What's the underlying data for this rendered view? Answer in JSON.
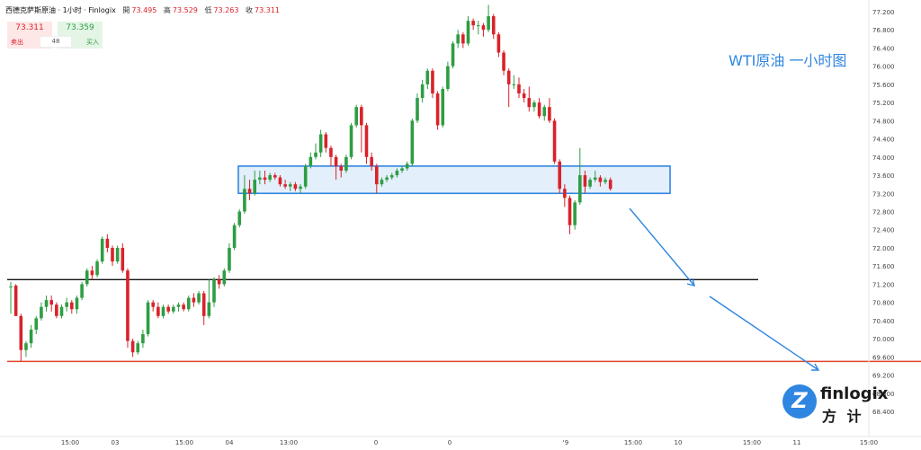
{
  "header": {
    "symbol": "西德克萨斯原油 · 1小时 · Finlogix",
    "open_label": "開",
    "open_value": "73.495",
    "high_label": "高",
    "high_value": "73.529",
    "low_label": "低",
    "low_value": "73.263",
    "close_label": "收",
    "close_value": "73.311"
  },
  "trade_panel": {
    "sell_price": "73.311",
    "buy_price": "73.359",
    "spread": "48",
    "sell_label": "卖出",
    "buy_label": "买入"
  },
  "annotation": "WTI原油 一小时图",
  "logo": {
    "name": "finlogix",
    "chinese": "方 计"
  },
  "colors": {
    "up": "#2e9d44",
    "down": "#d9222a",
    "zone_fill": "#e3effb",
    "zone_border": "#2f86e0",
    "arrow": "#2f86e0",
    "support_red": "#e0452a",
    "support_black": "#111111"
  },
  "chart_data": {
    "type": "candlestick",
    "y_ticks": [
      "77.200",
      "76.800",
      "76.400",
      "76.000",
      "75.600",
      "75.200",
      "74.800",
      "74.400",
      "74.000",
      "73.600",
      "73.200",
      "72.800",
      "72.400",
      "72.000",
      "71.600",
      "71.200",
      "70.800",
      "70.400",
      "70.000",
      "69.600",
      "69.200",
      "68.800",
      "68.400"
    ],
    "x_ticks": [
      "15:00",
      "03",
      "15:00",
      "04",
      "13:00",
      "0",
      "0",
      "'9",
      "15:00",
      "10",
      "15:00",
      "11",
      "15:00"
    ],
    "ylim": [
      68.4,
      77.2
    ],
    "resistance_zone": [
      73.2,
      73.8
    ],
    "horizontal_levels": [
      {
        "value": 71.3,
        "color": "black"
      },
      {
        "value": 69.5,
        "color": "red"
      }
    ],
    "candles": [
      [
        71.15,
        71.15,
        71.25,
        70.55
      ],
      [
        71.17,
        70.5,
        71.2,
        70.5
      ],
      [
        70.5,
        69.75,
        70.55,
        69.5
      ],
      [
        69.75,
        69.9,
        69.95,
        69.6
      ],
      [
        69.9,
        70.2,
        70.3,
        69.8
      ],
      [
        70.2,
        70.45,
        70.5,
        70.1
      ],
      [
        70.45,
        70.7,
        70.8,
        70.4
      ],
      [
        70.7,
        70.85,
        70.95,
        70.6
      ],
      [
        70.85,
        70.75,
        70.95,
        70.6
      ],
      [
        70.75,
        70.5,
        70.8,
        70.45
      ],
      [
        70.5,
        70.7,
        70.75,
        70.45
      ],
      [
        70.7,
        70.8,
        70.9,
        70.6
      ],
      [
        70.8,
        70.65,
        70.85,
        70.55
      ],
      [
        70.65,
        70.9,
        70.95,
        70.55
      ],
      [
        70.9,
        71.2,
        71.25,
        70.85
      ],
      [
        71.2,
        71.5,
        71.55,
        71.15
      ],
      [
        71.5,
        71.4,
        71.6,
        71.3
      ],
      [
        71.4,
        71.7,
        71.75,
        71.35
      ],
      [
        71.7,
        72.2,
        72.25,
        71.65
      ],
      [
        72.2,
        72.0,
        72.3,
        71.9
      ],
      [
        72.0,
        71.7,
        72.05,
        71.6
      ],
      [
        71.7,
        72.0,
        72.05,
        71.65
      ],
      [
        72.0,
        71.5,
        72.1,
        71.45
      ],
      [
        71.5,
        69.95,
        71.55,
        69.8
      ],
      [
        69.95,
        69.7,
        70.0,
        69.6
      ],
      [
        69.7,
        69.9,
        69.95,
        69.65
      ],
      [
        69.9,
        70.1,
        70.2,
        69.8
      ],
      [
        70.1,
        70.8,
        70.85,
        70.05
      ],
      [
        70.8,
        70.7,
        70.85,
        70.6
      ],
      [
        70.7,
        70.5,
        70.8,
        70.45
      ],
      [
        70.5,
        70.7,
        70.75,
        70.45
      ],
      [
        70.7,
        70.6,
        70.75,
        70.55
      ],
      [
        70.6,
        70.7,
        70.75,
        70.55
      ],
      [
        70.7,
        70.75,
        70.8,
        70.6
      ],
      [
        70.75,
        70.65,
        70.8,
        70.6
      ],
      [
        70.65,
        70.9,
        70.95,
        70.6
      ],
      [
        70.9,
        70.8,
        71.0,
        70.7
      ],
      [
        70.8,
        71.0,
        71.05,
        70.75
      ],
      [
        71.0,
        70.5,
        71.05,
        70.3
      ],
      [
        70.5,
        70.8,
        71.3,
        70.45
      ],
      [
        70.8,
        71.3,
        71.35,
        70.7
      ],
      [
        71.3,
        71.2,
        71.4,
        71.1
      ],
      [
        71.2,
        71.5,
        71.55,
        71.15
      ],
      [
        71.5,
        72.0,
        72.1,
        71.45
      ],
      [
        72.0,
        72.5,
        72.55,
        71.95
      ],
      [
        72.5,
        72.8,
        72.85,
        72.45
      ],
      [
        72.8,
        73.3,
        73.6,
        72.75
      ],
      [
        73.3,
        73.2,
        73.5,
        73.05
      ],
      [
        73.2,
        73.5,
        73.7,
        73.15
      ],
      [
        73.5,
        73.55,
        73.7,
        73.4
      ],
      [
        73.55,
        73.5,
        73.7,
        73.4
      ],
      [
        73.5,
        73.6,
        73.65,
        73.45
      ],
      [
        73.6,
        73.55,
        73.65,
        73.5
      ],
      [
        73.55,
        73.4,
        73.6,
        73.35
      ],
      [
        73.4,
        73.35,
        73.5,
        73.3
      ],
      [
        73.35,
        73.4,
        73.45,
        73.25
      ],
      [
        73.4,
        73.3,
        73.45,
        73.25
      ],
      [
        73.3,
        73.35,
        73.4,
        73.2
      ],
      [
        73.35,
        73.8,
        73.85,
        73.3
      ],
      [
        73.8,
        74.0,
        74.1,
        73.75
      ],
      [
        74.0,
        74.1,
        74.3,
        73.95
      ],
      [
        74.1,
        74.5,
        74.6,
        74.0
      ],
      [
        74.5,
        74.2,
        74.55,
        74.1
      ],
      [
        74.2,
        74.0,
        74.25,
        73.8
      ],
      [
        74.0,
        73.8,
        74.05,
        73.5
      ],
      [
        73.8,
        73.7,
        73.85,
        73.55
      ],
      [
        73.7,
        74.0,
        74.05,
        73.65
      ],
      [
        74.0,
        74.7,
        74.75,
        73.95
      ],
      [
        74.7,
        75.1,
        75.15,
        74.65
      ],
      [
        75.1,
        74.7,
        75.15,
        74.1
      ],
      [
        74.7,
        74.0,
        74.75,
        73.85
      ],
      [
        74.0,
        73.8,
        74.1,
        73.7
      ],
      [
        73.8,
        73.4,
        73.85,
        73.2
      ],
      [
        73.4,
        73.5,
        73.55,
        73.35
      ],
      [
        73.5,
        73.55,
        73.6,
        73.45
      ],
      [
        73.55,
        73.6,
        73.65,
        73.5
      ],
      [
        73.6,
        73.7,
        73.75,
        73.55
      ],
      [
        73.7,
        73.75,
        73.8,
        73.65
      ],
      [
        73.75,
        73.85,
        73.9,
        73.7
      ],
      [
        73.85,
        74.8,
        74.85,
        73.8
      ],
      [
        74.8,
        75.3,
        75.4,
        74.75
      ],
      [
        75.3,
        75.6,
        75.7,
        75.2
      ],
      [
        75.6,
        75.9,
        75.95,
        75.5
      ],
      [
        75.9,
        75.4,
        75.95,
        75.3
      ],
      [
        75.4,
        74.7,
        75.45,
        74.6
      ],
      [
        74.7,
        75.5,
        75.55,
        74.65
      ],
      [
        75.5,
        76.0,
        76.1,
        75.45
      ],
      [
        76.0,
        76.5,
        76.55,
        75.95
      ],
      [
        76.5,
        76.7,
        76.8,
        76.4
      ],
      [
        76.7,
        76.5,
        76.75,
        76.4
      ],
      [
        76.5,
        77.0,
        77.1,
        76.45
      ],
      [
        77.0,
        76.9,
        77.05,
        76.8
      ],
      [
        76.9,
        76.9,
        77.0,
        76.7
      ],
      [
        76.9,
        76.8,
        76.95,
        76.65
      ],
      [
        76.8,
        77.1,
        77.35,
        76.75
      ],
      [
        77.1,
        76.7,
        77.15,
        76.6
      ],
      [
        76.7,
        76.3,
        76.75,
        76.2
      ],
      [
        76.3,
        75.9,
        76.35,
        75.8
      ],
      [
        75.9,
        75.6,
        75.95,
        75.1
      ],
      [
        75.6,
        75.6,
        75.8,
        75.5
      ],
      [
        75.6,
        75.4,
        75.75,
        75.3
      ],
      [
        75.4,
        75.3,
        75.5,
        75.2
      ],
      [
        75.3,
        75.1,
        75.55,
        75.0
      ],
      [
        75.1,
        75.2,
        75.25,
        75.0
      ],
      [
        75.2,
        74.9,
        75.3,
        74.85
      ],
      [
        74.9,
        75.1,
        75.15,
        74.8
      ],
      [
        75.1,
        74.8,
        75.3,
        74.75
      ],
      [
        74.8,
        73.9,
        74.85,
        73.85
      ],
      [
        73.9,
        73.3,
        73.95,
        73.2
      ],
      [
        73.3,
        73.1,
        73.4,
        72.9
      ],
      [
        73.1,
        72.5,
        73.15,
        72.3
      ],
      [
        72.5,
        73.0,
        73.05,
        72.4
      ],
      [
        73.0,
        73.6,
        74.2,
        72.95
      ],
      [
        73.6,
        73.35,
        73.7,
        73.2
      ],
      [
        73.35,
        73.5,
        73.55,
        73.3
      ],
      [
        73.5,
        73.55,
        73.7,
        73.45
      ],
      [
        73.55,
        73.45,
        73.6,
        73.35
      ],
      [
        73.45,
        73.5,
        73.55,
        73.4
      ],
      [
        73.5,
        73.3,
        73.55,
        73.26
      ]
    ]
  }
}
